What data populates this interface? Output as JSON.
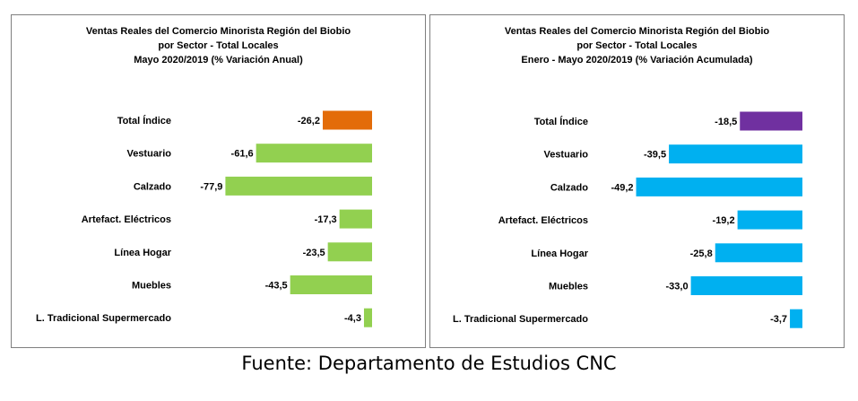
{
  "chart_data": [
    {
      "type": "bar",
      "orientation": "horizontal",
      "title_lines": [
        "Ventas Reales del Comercio Minorista  Región del Biobio",
        "por Sector - Total Locales",
        "Mayo 2020/2019 (% Variación Anual)"
      ],
      "categories": [
        "Total Índice",
        "Vestuario",
        "Calzado",
        "Artefact. Eléctricos",
        "Línea Hogar",
        "Muebles",
        "L. Tradicional Supermercado"
      ],
      "values": [
        -26.2,
        -61.6,
        -77.9,
        -17.3,
        -23.5,
        -43.5,
        -4.3
      ],
      "value_labels": [
        "-26,2",
        "-61,6",
        "-77,9",
        "-17,3",
        "-23,5",
        "-43,5",
        "-4,3"
      ],
      "colors": [
        "#E36C09",
        "#92D050",
        "#92D050",
        "#92D050",
        "#92D050",
        "#92D050",
        "#92D050"
      ],
      "xlim": [
        -100,
        0
      ],
      "grid": false,
      "legend": "none"
    },
    {
      "type": "bar",
      "orientation": "horizontal",
      "title_lines": [
        "Ventas Reales del Comercio Minorista Región del Biobio",
        "por Sector - Total Locales",
        "Enero - Mayo  2020/2019 (% Variación Acumulada)"
      ],
      "categories": [
        "Total Índice",
        "Vestuario",
        "Calzado",
        "Artefact. Eléctricos",
        "Línea Hogar",
        "Muebles",
        "L. Tradicional Supermercado"
      ],
      "values": [
        -18.5,
        -39.5,
        -49.2,
        -19.2,
        -25.8,
        -33.0,
        -3.7
      ],
      "value_labels": [
        "-18,5",
        "-39,5",
        "-49,2",
        "-19,2",
        "-25,8",
        "-33,0",
        "-3,7"
      ],
      "colors": [
        "#7030A0",
        "#00B0F0",
        "#00B0F0",
        "#00B0F0",
        "#00B0F0",
        "#00B0F0",
        "#00B0F0"
      ],
      "xlim": [
        -60,
        0
      ],
      "grid": false,
      "legend": "none"
    }
  ],
  "footer": "Fuente: Departamento de Estudios CNC"
}
